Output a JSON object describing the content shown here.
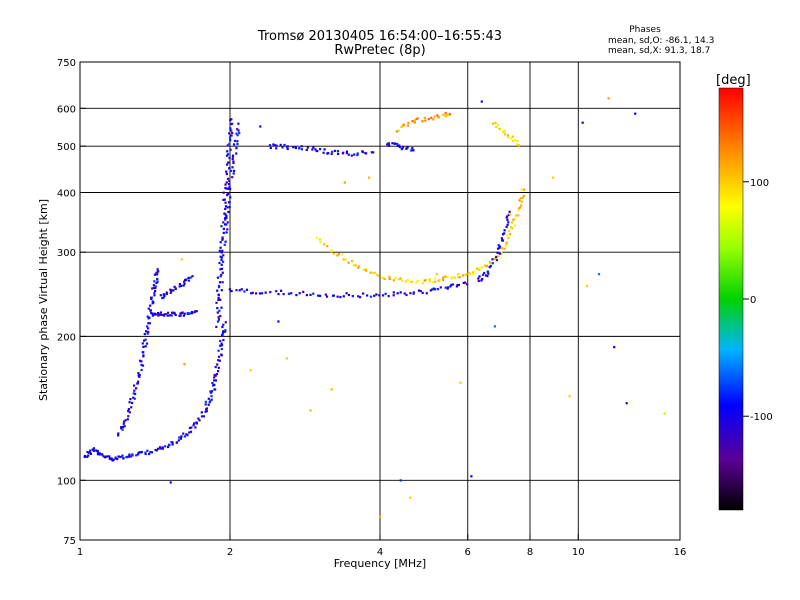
{
  "title_line1": "Tromsø 20130405 16:54:00–16:55:43",
  "title_line2": "RwPretec (8p)",
  "phases": {
    "label": "Phases",
    "o_line": "mean, sd,O: -86.1, 14.3",
    "x_line": "mean, sd,X:  91.3, 18.7"
  },
  "colorbar": {
    "unit": "[deg]",
    "ticks": [
      {
        "value": 100,
        "label": "100"
      },
      {
        "value": 0,
        "label": "0"
      },
      {
        "value": -100,
        "label": "-100"
      }
    ],
    "range": [
      -180,
      180
    ]
  },
  "chart_data": {
    "type": "scatter",
    "xlabel": "Frequency [MHz]",
    "ylabel": "Stationary phase Virtual Height [km]",
    "x_scale": "log",
    "y_scale": "log",
    "xlim": [
      1,
      16
    ],
    "ylim": [
      75,
      750
    ],
    "x_ticks": [
      {
        "value": 1,
        "label": "1"
      },
      {
        "value": 2,
        "label": "2"
      },
      {
        "value": 4,
        "label": "4"
      },
      {
        "value": 6,
        "label": "6"
      },
      {
        "value": 8,
        "label": "8"
      },
      {
        "value": 10,
        "label": "10"
      },
      {
        "value": 16,
        "label": "16"
      }
    ],
    "y_ticks": [
      {
        "value": 75,
        "label": "75"
      },
      {
        "value": 100,
        "label": "100"
      },
      {
        "value": 200,
        "label": "200"
      },
      {
        "value": 300,
        "label": "300"
      },
      {
        "value": 400,
        "label": "400"
      },
      {
        "value": 500,
        "label": "500"
      },
      {
        "value": 600,
        "label": "600"
      },
      {
        "value": 750,
        "label": "750"
      }
    ],
    "grid_x": [
      2,
      4,
      6,
      8,
      10
    ],
    "grid_y": [
      100,
      200,
      300,
      400,
      500,
      600
    ],
    "traces": [
      {
        "phase": -100,
        "points": [
          [
            1.02,
            112
          ],
          [
            1.06,
            116
          ],
          [
            1.1,
            113
          ],
          [
            1.15,
            111
          ],
          [
            1.22,
            112
          ],
          [
            1.3,
            113
          ],
          [
            1.4,
            115
          ],
          [
            1.5,
            118
          ],
          [
            1.6,
            123
          ],
          [
            1.7,
            130
          ],
          [
            1.78,
            140
          ],
          [
            1.83,
            150
          ],
          [
            1.87,
            162
          ],
          [
            1.9,
            178
          ],
          [
            1.93,
            198
          ],
          [
            1.95,
            215
          ]
        ]
      },
      {
        "phase": -100,
        "points": [
          [
            1.2,
            125
          ],
          [
            1.24,
            135
          ],
          [
            1.28,
            150
          ],
          [
            1.31,
            165
          ],
          [
            1.34,
            185
          ],
          [
            1.36,
            205
          ],
          [
            1.38,
            225
          ],
          [
            1.4,
            245
          ],
          [
            1.42,
            262
          ],
          [
            1.44,
            278
          ]
        ]
      },
      {
        "phase": -100,
        "points": [
          [
            1.4,
            222
          ],
          [
            1.46,
            223
          ],
          [
            1.55,
            222
          ],
          [
            1.64,
            223
          ],
          [
            1.72,
            225
          ]
        ]
      },
      {
        "phase": -100,
        "points": [
          [
            1.45,
            242
          ],
          [
            1.52,
            248
          ],
          [
            1.6,
            258
          ],
          [
            1.68,
            268
          ]
        ]
      },
      {
        "phase": -100,
        "points": [
          [
            1.88,
            210
          ],
          [
            1.9,
            250
          ],
          [
            1.92,
            300
          ],
          [
            1.94,
            350
          ],
          [
            1.96,
            400
          ],
          [
            1.98,
            460
          ],
          [
            2.0,
            520
          ],
          [
            2.02,
            580
          ]
        ]
      },
      {
        "phase": -100,
        "points": [
          [
            1.9,
            220
          ],
          [
            1.93,
            280
          ],
          [
            1.96,
            340
          ],
          [
            1.99,
            390
          ],
          [
            2.02,
            440
          ],
          [
            2.05,
            500
          ],
          [
            2.08,
            560
          ]
        ]
      },
      {
        "phase": -100,
        "points": [
          [
            2.0,
            250
          ],
          [
            2.3,
            248
          ],
          [
            2.7,
            246
          ],
          [
            3.2,
            244
          ],
          [
            3.7,
            244
          ],
          [
            4.3,
            245
          ],
          [
            4.9,
            248
          ],
          [
            5.5,
            253
          ],
          [
            6.0,
            260
          ]
        ]
      },
      {
        "phase": -100,
        "points": [
          [
            2.4,
            500
          ],
          [
            2.6,
            498
          ],
          [
            2.9,
            495
          ],
          [
            3.2,
            485
          ],
          [
            3.5,
            482
          ],
          [
            3.9,
            488
          ]
        ]
      },
      {
        "phase": -100,
        "points": [
          [
            4.1,
            505
          ],
          [
            4.4,
            500
          ],
          [
            4.7,
            490
          ]
        ]
      },
      {
        "phase": 100,
        "points": [
          [
            3.0,
            320
          ],
          [
            3.3,
            296
          ],
          [
            3.7,
            276
          ],
          [
            4.1,
            265
          ],
          [
            4.6,
            260
          ],
          [
            5.1,
            262
          ],
          [
            5.6,
            266
          ],
          [
            6.1,
            272
          ],
          [
            6.6,
            281
          ],
          [
            7.0,
            300
          ],
          [
            7.3,
            330
          ],
          [
            7.6,
            370
          ],
          [
            7.8,
            410
          ]
        ]
      },
      {
        "phase": -100,
        "points": [
          [
            6.3,
            262
          ],
          [
            6.6,
            272
          ],
          [
            6.9,
            300
          ],
          [
            7.1,
            330
          ],
          [
            7.3,
            370
          ]
        ]
      },
      {
        "phase": 120,
        "points": [
          [
            4.3,
            540
          ],
          [
            4.7,
            565
          ],
          [
            5.2,
            575
          ],
          [
            5.6,
            590
          ]
        ]
      },
      {
        "phase": 90,
        "points": [
          [
            6.8,
            560
          ],
          [
            7.2,
            530
          ],
          [
            7.6,
            500
          ]
        ]
      }
    ],
    "scatter_points": [
      [
        1.52,
        99,
        -100
      ],
      [
        1.6,
        290,
        100
      ],
      [
        1.62,
        175,
        120
      ],
      [
        2.3,
        550,
        -100
      ],
      [
        2.6,
        180,
        100
      ],
      [
        2.9,
        140,
        110
      ],
      [
        3.4,
        420,
        120
      ],
      [
        3.8,
        430,
        110
      ],
      [
        4.0,
        84,
        110
      ],
      [
        4.4,
        100,
        -80
      ],
      [
        4.6,
        92,
        100
      ],
      [
        5.2,
        270,
        100
      ],
      [
        6.1,
        102,
        -100
      ],
      [
        6.4,
        620,
        -100
      ],
      [
        6.8,
        210,
        -60
      ],
      [
        7.3,
        360,
        100
      ],
      [
        8.9,
        430,
        100
      ],
      [
        10.2,
        560,
        -100
      ],
      [
        10.4,
        255,
        100
      ],
      [
        11.5,
        630,
        120
      ],
      [
        11.8,
        190,
        -100
      ],
      [
        12.5,
        145,
        -100
      ],
      [
        13.0,
        585,
        -100
      ],
      [
        14.9,
        138,
        50
      ],
      [
        11.0,
        270,
        -60
      ],
      [
        9.6,
        150,
        100
      ],
      [
        5.8,
        160,
        100
      ],
      [
        3.2,
        155,
        110
      ],
      [
        2.2,
        170,
        100
      ],
      [
        2.5,
        215,
        -100
      ]
    ]
  }
}
